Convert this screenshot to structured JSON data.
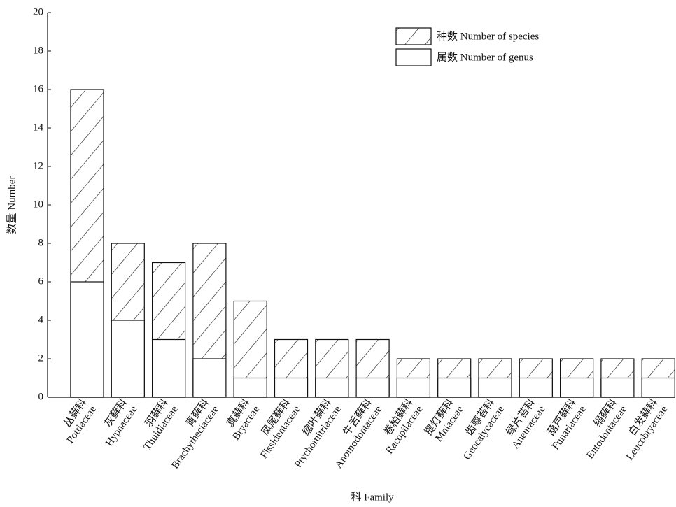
{
  "chart_data": {
    "type": "bar",
    "overlap": true,
    "xlabel": "科 Family",
    "ylabel": "数量 Number",
    "categories": [
      [
        "丛藓科",
        "Pottiaceae"
      ],
      [
        "灰藓科",
        "Hypnaceae"
      ],
      [
        "羽藓科",
        "Thuidiaceae"
      ],
      [
        "青藓科",
        "Brachytheciaceae"
      ],
      [
        "真藓科",
        "Bryaceae"
      ],
      [
        "凤尾藓科",
        "Fissidentaceae"
      ],
      [
        "缩叶藓科",
        "Ptychomitriaceae"
      ],
      [
        "牛舌藓科",
        "Anomodontaceae"
      ],
      [
        "卷柏藓科",
        "Racopilaceae"
      ],
      [
        "提灯藓科",
        "Mniaceae"
      ],
      [
        "齿萼苔科",
        "Geocalycaceae"
      ],
      [
        "绿片苔科",
        "Aneuraceae"
      ],
      [
        "葫芦藓科",
        "Funariaceae"
      ],
      [
        "绢藓科",
        "Entodontaceae"
      ],
      [
        "白发藓科",
        "Leucobryaceae"
      ]
    ],
    "series": [
      {
        "name": "种数 Number of species",
        "color": "#ffffff",
        "hatch": true,
        "values": [
          16,
          8,
          7,
          8,
          5,
          3,
          3,
          3,
          2,
          2,
          2,
          2,
          2,
          2,
          2
        ]
      },
      {
        "name": "属数 Number of genus",
        "color": "#ffffff",
        "hatch": false,
        "values": [
          6,
          4,
          3,
          2,
          1,
          1,
          1,
          1,
          1,
          1,
          1,
          1,
          1,
          1,
          1
        ]
      }
    ],
    "ylim": [
      0,
      20
    ],
    "yticks": [
      0,
      2,
      4,
      6,
      8,
      10,
      12,
      14,
      16,
      18,
      20
    ],
    "grid": false,
    "legend": "upper right"
  }
}
